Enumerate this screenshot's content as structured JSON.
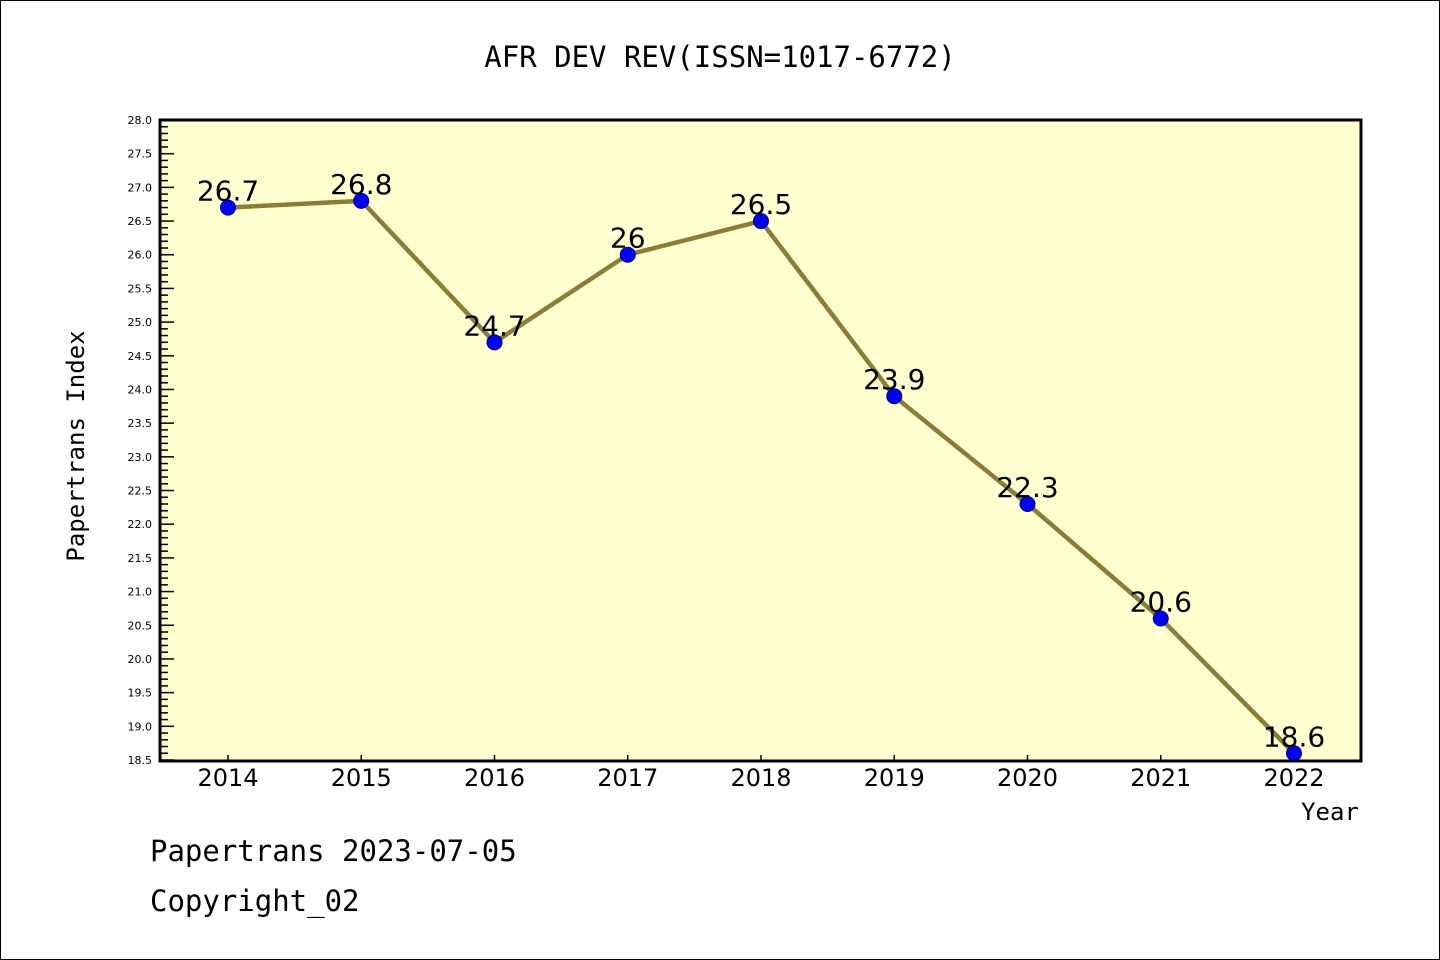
{
  "chart_data": {
    "type": "line",
    "title": "AFR DEV REV(ISSN=1017-6772)",
    "xlabel": "Year",
    "ylabel": "Papertrans Index",
    "categories": [
      "2014",
      "2015",
      "2016",
      "2017",
      "2018",
      "2019",
      "2020",
      "2021",
      "2022"
    ],
    "values": [
      26.7,
      26.8,
      24.7,
      26,
      26.5,
      23.9,
      22.3,
      20.6,
      18.6
    ],
    "data_labels": [
      "26.7",
      "26.8",
      "24.7",
      "26",
      "26.5",
      "23.9",
      "22.3",
      "20.6",
      "18.6"
    ],
    "ylim": [
      18.5,
      28.0
    ],
    "yticks": [
      "18.5",
      "19.0",
      "19.5",
      "20.0",
      "20.5",
      "21.0",
      "21.5",
      "22.0",
      "22.5",
      "23.0",
      "23.5",
      "24.0",
      "24.5",
      "25.0",
      "25.5",
      "26.0",
      "26.5",
      "27.0",
      "27.5",
      "28.0"
    ],
    "grid": false,
    "colors": {
      "line": "#8b7d35",
      "marker": "#0000ff",
      "plot_bg": "#ffffd0"
    }
  },
  "footer": {
    "line1": "Papertrans 2023-07-05",
    "line2": "Copyright_02"
  }
}
